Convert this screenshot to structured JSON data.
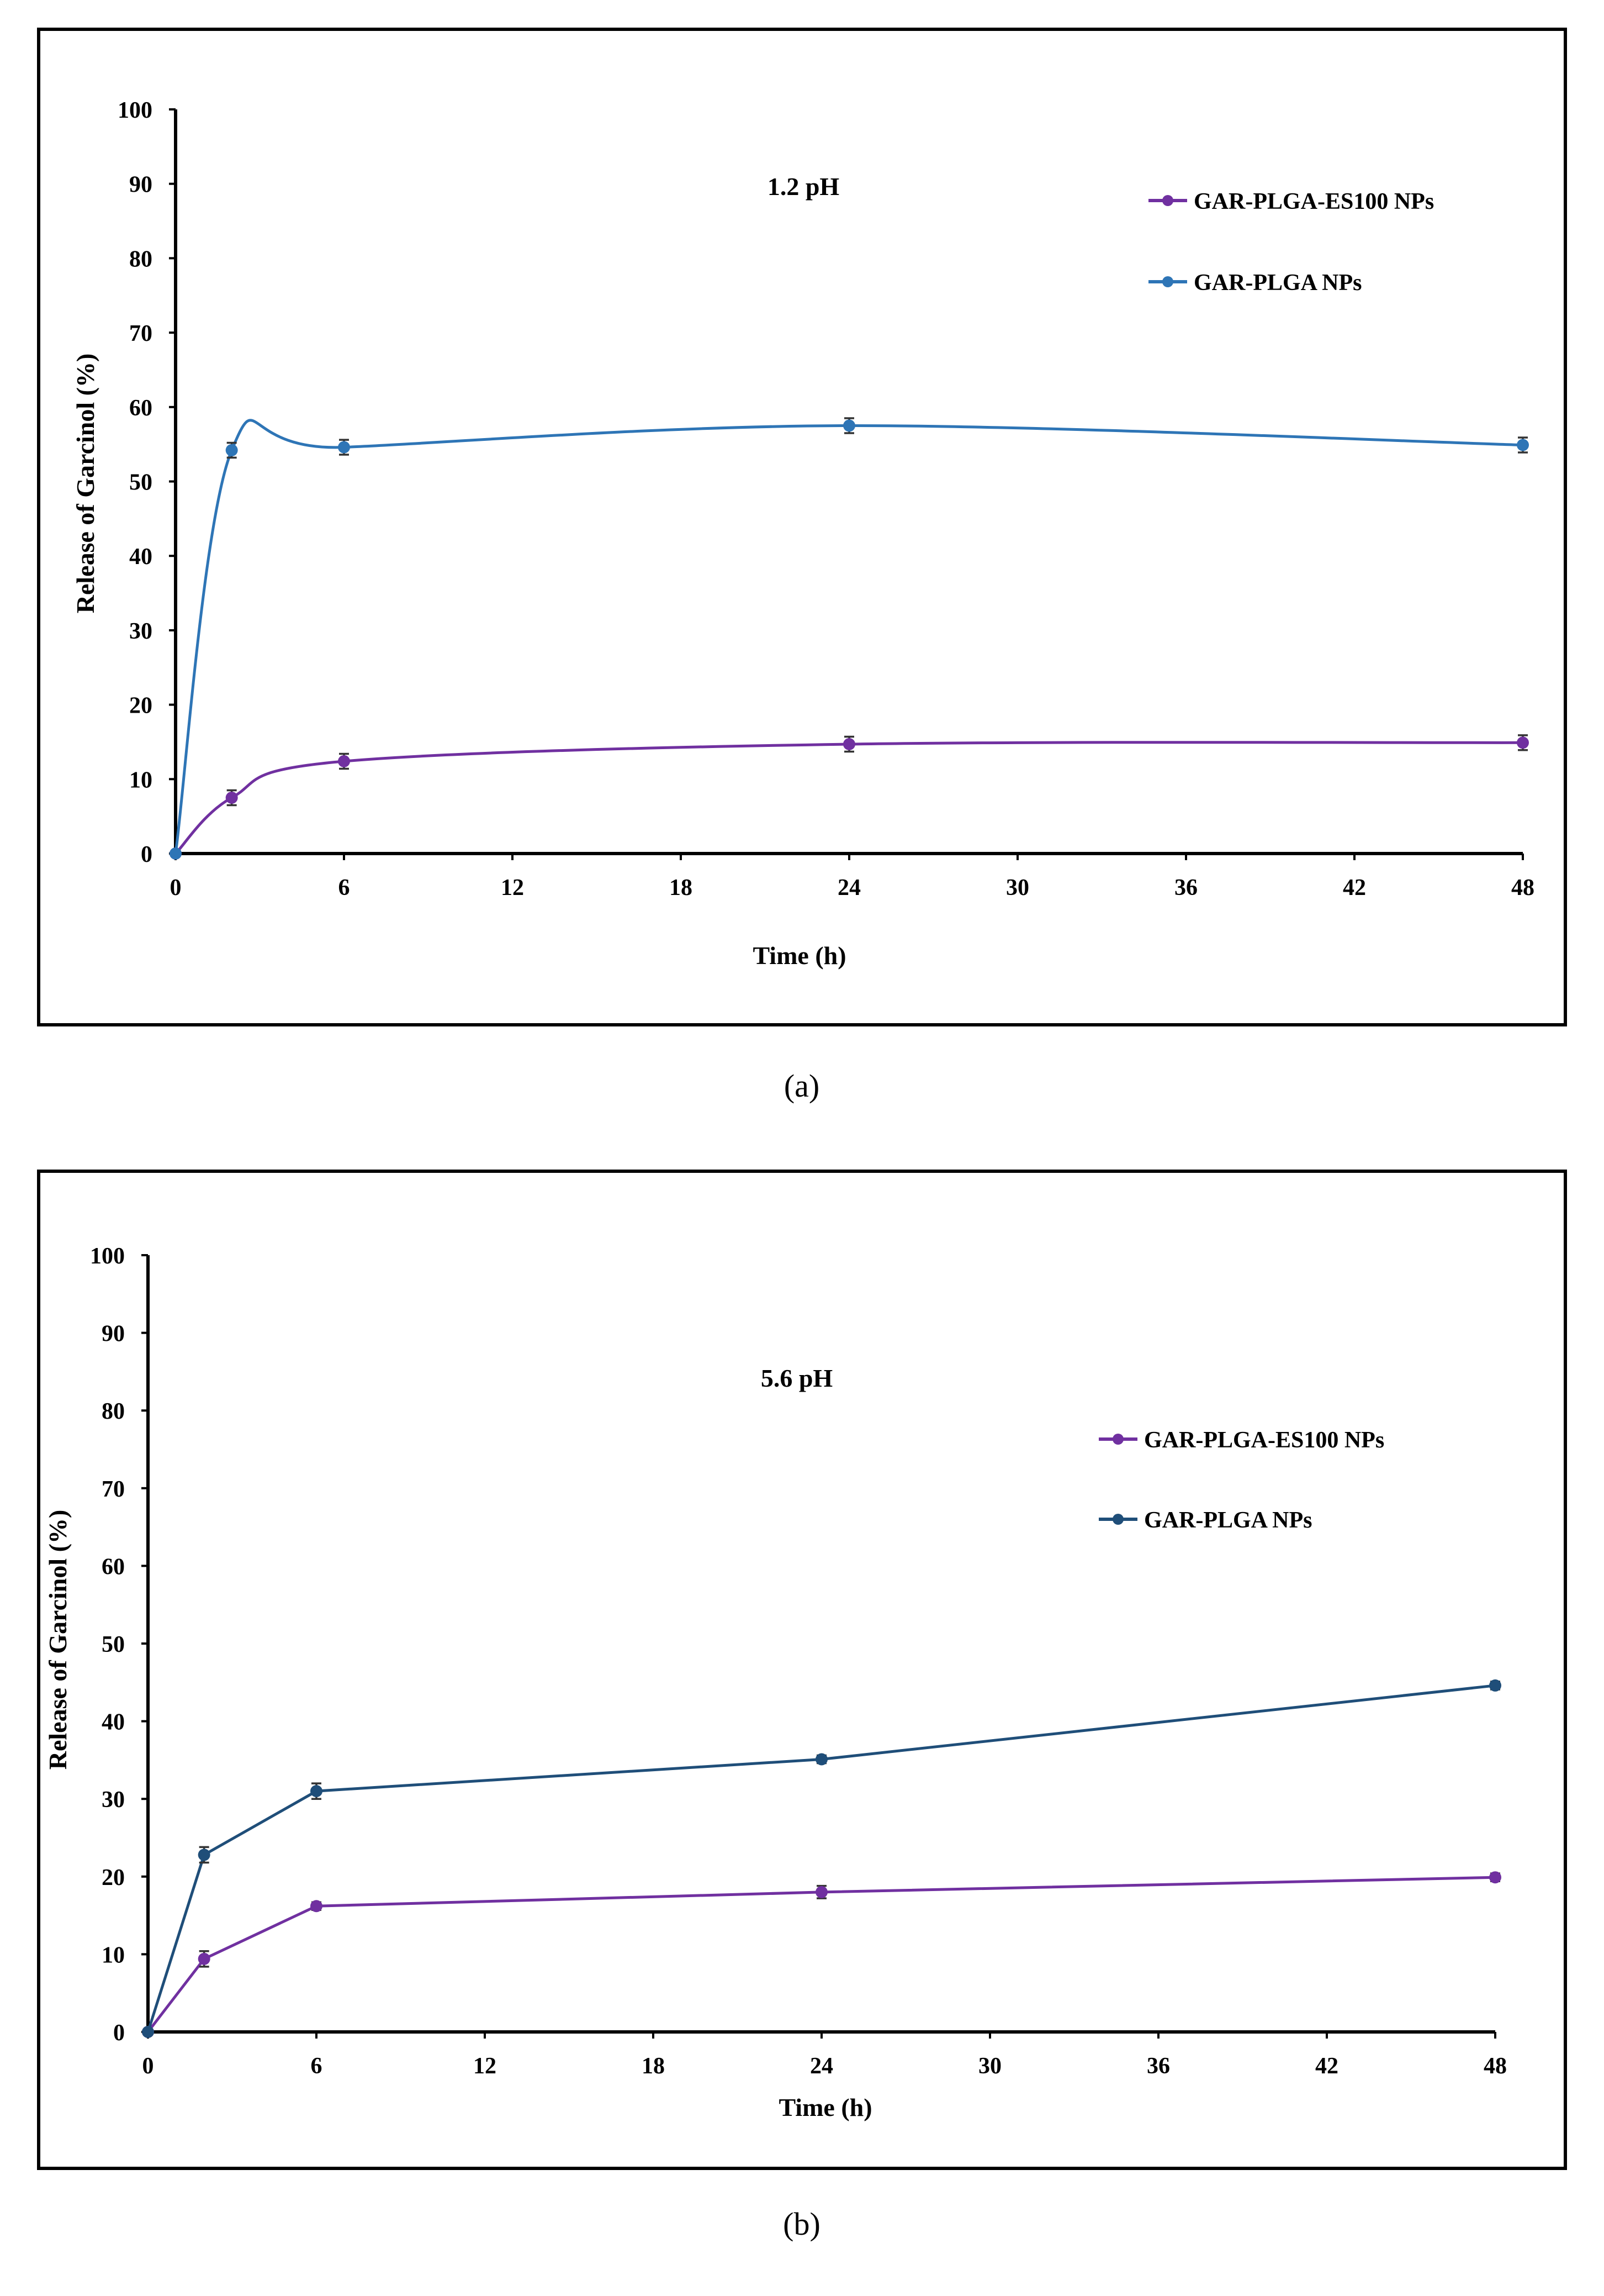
{
  "chart_data": [
    {
      "type": "line",
      "panel_label": "(a)",
      "annotation": "1.2 pH",
      "xlabel": "Time (h)",
      "ylabel": "Release of Garcinol (%)",
      "xlim": [
        0,
        48
      ],
      "ylim": [
        0,
        100
      ],
      "xticks": [
        0,
        6,
        12,
        18,
        24,
        30,
        36,
        42,
        48
      ],
      "yticks": [
        0,
        10,
        20,
        30,
        40,
        50,
        60,
        70,
        80,
        90,
        100
      ],
      "legend_position": "top-right",
      "x": [
        0,
        2,
        6,
        24,
        48
      ],
      "series": [
        {
          "name": "GAR-PLGA-ES100 NPs",
          "color": "#7030a0",
          "values": [
            0,
            7.5,
            12.4,
            14.7,
            14.9
          ],
          "errors": [
            0,
            1.0,
            1.0,
            1.0,
            1.0
          ]
        },
        {
          "name": "GAR-PLGA NPs",
          "color": "#2e75b6",
          "values": [
            0,
            54.2,
            54.6,
            57.5,
            54.9
          ],
          "errors": [
            0,
            1.0,
            1.0,
            1.0,
            1.0
          ]
        }
      ]
    },
    {
      "type": "line",
      "panel_label": "(b)",
      "annotation": "5.6 pH",
      "xlabel": "Time (h)",
      "ylabel": "Release of Garcinol (%)",
      "xlim": [
        0,
        48
      ],
      "ylim": [
        0,
        100
      ],
      "xticks": [
        0,
        6,
        12,
        18,
        24,
        30,
        36,
        42,
        48
      ],
      "yticks": [
        0,
        10,
        20,
        30,
        40,
        50,
        60,
        70,
        80,
        90,
        100
      ],
      "legend_position": "top-right",
      "x": [
        0,
        2,
        6,
        24,
        48
      ],
      "series": [
        {
          "name": "GAR-PLGA-ES100 NPs",
          "color": "#7030a0",
          "values": [
            0,
            9.4,
            16.2,
            18.0,
            19.9
          ],
          "errors": [
            0,
            1.0,
            0.5,
            0.8,
            0.5
          ]
        },
        {
          "name": "GAR-PLGA NPs",
          "color": "#1f4e79",
          "values": [
            0,
            22.8,
            31.0,
            35.1,
            44.6
          ],
          "errors": [
            0,
            1.0,
            1.0,
            0.5,
            0.5
          ]
        }
      ]
    }
  ]
}
